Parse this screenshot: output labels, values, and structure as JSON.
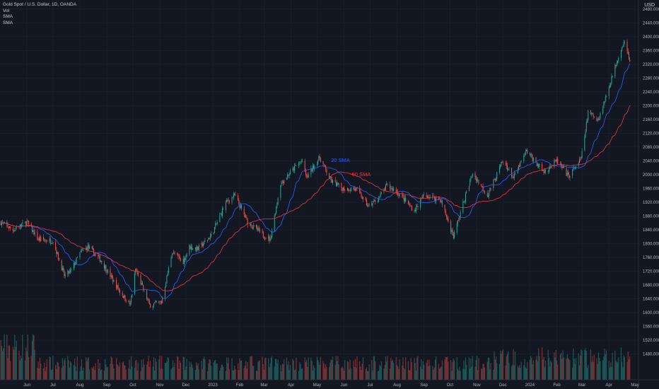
{
  "legend": {
    "title": "Gold Spot / U.S. Dollar, 1D, OANDA",
    "vol": "Vol",
    "sma1": "SMA",
    "sma2": "SMA"
  },
  "currency": "USD",
  "colors": {
    "background": "#131722",
    "grid": "#1e2230",
    "up": "#26a69a",
    "down": "#ef5350",
    "sma20": "#2962ff",
    "sma50": "#f23645",
    "axis_text": "#b2b5be"
  },
  "chart_data": {
    "type": "candlestick",
    "symbol": "Gold Spot / U.S. Dollar",
    "interval": "1D",
    "source": "OANDA",
    "x_tick_labels": [
      "Jun",
      "Jul",
      "Aug",
      "Sep",
      "Oct",
      "Nov",
      "Dec",
      "2023",
      "Feb",
      "Mar",
      "Apr",
      "May",
      "Jun",
      "Jul",
      "Aug",
      "Sep",
      "Oct",
      "Nov",
      "Dec",
      "2024",
      "Feb",
      "Mar",
      "Apr",
      "May"
    ],
    "y_tick_labels": [
      "2480.000",
      "2440.000",
      "2400.000",
      "2360.000",
      "2320.000",
      "2280.000",
      "2240.000",
      "2200.000",
      "2160.000",
      "2120.000",
      "2080.000",
      "2040.000",
      "2000.000",
      "1960.000",
      "1920.000",
      "1880.000",
      "1840.000",
      "1800.000",
      "1760.000",
      "1720.000",
      "1680.000",
      "1640.000",
      "1600.000",
      "1560.000",
      "1520.000",
      "1480.000"
    ],
    "y_range": [
      1446,
      2494
    ],
    "x_range": [
      "2022-05-01",
      "2024-05-05"
    ],
    "grid": true,
    "close_anchors": [
      {
        "date": "2022-05-02",
        "close": 1862
      },
      {
        "date": "2022-05-16",
        "close": 1840
      },
      {
        "date": "2022-06-01",
        "close": 1862
      },
      {
        "date": "2022-06-14",
        "close": 1812
      },
      {
        "date": "2022-07-01",
        "close": 1808
      },
      {
        "date": "2022-07-14",
        "close": 1707
      },
      {
        "date": "2022-07-21",
        "close": 1718
      },
      {
        "date": "2022-08-01",
        "close": 1772
      },
      {
        "date": "2022-08-10",
        "close": 1790
      },
      {
        "date": "2022-08-25",
        "close": 1752
      },
      {
        "date": "2022-09-15",
        "close": 1665
      },
      {
        "date": "2022-09-28",
        "close": 1622
      },
      {
        "date": "2022-10-04",
        "close": 1725
      },
      {
        "date": "2022-10-20",
        "close": 1622
      },
      {
        "date": "2022-11-03",
        "close": 1630
      },
      {
        "date": "2022-11-15",
        "close": 1775
      },
      {
        "date": "2022-11-28",
        "close": 1748
      },
      {
        "date": "2022-12-05",
        "close": 1790
      },
      {
        "date": "2022-12-15",
        "close": 1785
      },
      {
        "date": "2022-12-30",
        "close": 1823
      },
      {
        "date": "2023-01-16",
        "close": 1918
      },
      {
        "date": "2023-01-26",
        "close": 1940
      },
      {
        "date": "2023-02-10",
        "close": 1862
      },
      {
        "date": "2023-02-28",
        "close": 1825
      },
      {
        "date": "2023-03-08",
        "close": 1812
      },
      {
        "date": "2023-03-20",
        "close": 1975
      },
      {
        "date": "2023-04-05",
        "close": 2020
      },
      {
        "date": "2023-04-13",
        "close": 2040
      },
      {
        "date": "2023-04-19",
        "close": 1992
      },
      {
        "date": "2023-05-04",
        "close": 2050
      },
      {
        "date": "2023-05-17",
        "close": 1982
      },
      {
        "date": "2023-05-30",
        "close": 1960
      },
      {
        "date": "2023-06-15",
        "close": 1958
      },
      {
        "date": "2023-06-29",
        "close": 1908
      },
      {
        "date": "2023-07-11",
        "close": 1932
      },
      {
        "date": "2023-07-20",
        "close": 1968
      },
      {
        "date": "2023-08-01",
        "close": 1950
      },
      {
        "date": "2023-08-21",
        "close": 1895
      },
      {
        "date": "2023-09-01",
        "close": 1940
      },
      {
        "date": "2023-09-20",
        "close": 1928
      },
      {
        "date": "2023-10-05",
        "close": 1820
      },
      {
        "date": "2023-10-16",
        "close": 1915
      },
      {
        "date": "2023-10-27",
        "close": 2005
      },
      {
        "date": "2023-11-13",
        "close": 1940
      },
      {
        "date": "2023-11-30",
        "close": 2035
      },
      {
        "date": "2023-12-04",
        "close": 2030
      },
      {
        "date": "2023-12-13",
        "close": 1990
      },
      {
        "date": "2023-12-28",
        "close": 2068
      },
      {
        "date": "2024-01-17",
        "close": 2008
      },
      {
        "date": "2024-02-01",
        "close": 2040
      },
      {
        "date": "2024-02-14",
        "close": 1995
      },
      {
        "date": "2024-02-29",
        "close": 2045
      },
      {
        "date": "2024-03-08",
        "close": 2180
      },
      {
        "date": "2024-03-20",
        "close": 2160
      },
      {
        "date": "2024-03-29",
        "close": 2230
      },
      {
        "date": "2024-04-12",
        "close": 2345
      },
      {
        "date": "2024-04-19",
        "close": 2390
      },
      {
        "date": "2024-04-25",
        "close": 2325
      }
    ],
    "series": [
      {
        "name": "20 SMA",
        "color": "#2962ff",
        "period": 20
      },
      {
        "name": "50 SMA",
        "color": "#f23645",
        "period": 50
      },
      {
        "name": "Vol"
      }
    ],
    "annotations": [
      {
        "text": "20 SMA",
        "color": "#2962ff",
        "at_date": "2023-05-17",
        "at_price": 2037
      },
      {
        "text": "50 SMA",
        "color": "#f23645",
        "at_date": "2023-06-10",
        "at_price": 1996
      }
    ]
  }
}
